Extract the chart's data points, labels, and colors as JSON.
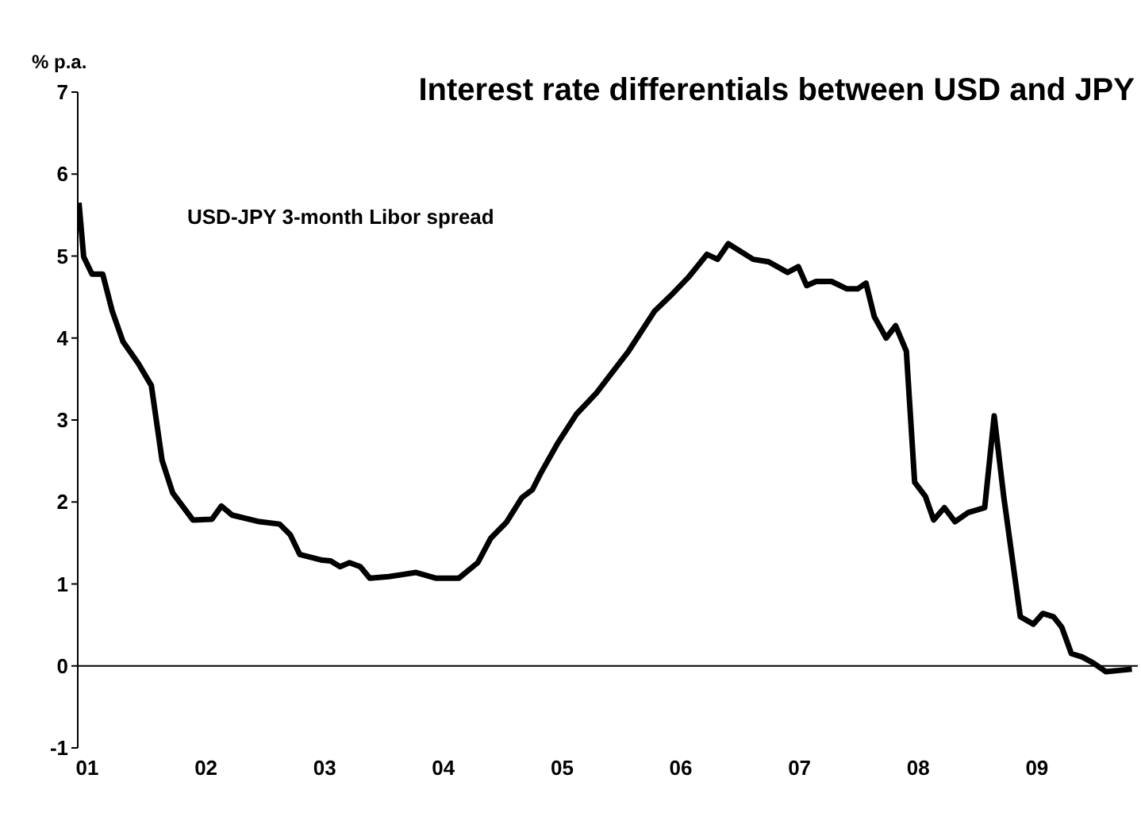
{
  "chart_data": {
    "type": "line",
    "title": "Interest rate differentials between USD and JPY",
    "ylabel": "% p.a.",
    "series": [
      {
        "name": "USD-JPY 3-month Libor spread",
        "color": "#000000",
        "x": [
          2001.01,
          2001.05,
          2001.12,
          2001.21,
          2001.29,
          2001.38,
          2001.51,
          2001.62,
          2001.71,
          2001.8,
          2001.97,
          2002.13,
          2002.21,
          2002.3,
          2002.53,
          2002.7,
          2002.79,
          2002.87,
          2003.06,
          2003.13,
          2003.21,
          2003.29,
          2003.38,
          2003.46,
          2003.62,
          2003.85,
          2004.02,
          2004.21,
          2004.37,
          2004.48,
          2004.61,
          2004.74,
          2004.83,
          2004.9,
          2005.04,
          2005.2,
          2005.37,
          2005.64,
          2005.86,
          2005.99,
          2006.15,
          2006.3,
          2006.39,
          2006.48,
          2006.69,
          2006.82,
          2006.98,
          2007.07,
          2007.14,
          2007.22,
          2007.35,
          2007.48,
          2007.57,
          2007.64,
          2007.71,
          2007.81,
          2007.89,
          2007.98,
          2008.05,
          2008.14,
          2008.21,
          2008.3,
          2008.39,
          2008.5,
          2008.64,
          2008.72,
          2008.8,
          2008.94,
          2009.05,
          2009.13,
          2009.22,
          2009.29,
          2009.37,
          2009.46,
          2009.55,
          2009.66,
          2009.88
        ],
        "values": [
          5.65,
          4.99,
          4.78,
          4.78,
          4.33,
          3.96,
          3.69,
          3.42,
          2.51,
          2.11,
          1.78,
          1.79,
          1.95,
          1.84,
          1.76,
          1.73,
          1.6,
          1.36,
          1.29,
          1.28,
          1.21,
          1.26,
          1.21,
          1.07,
          1.09,
          1.14,
          1.07,
          1.07,
          1.26,
          1.56,
          1.75,
          2.05,
          2.15,
          2.35,
          2.71,
          3.07,
          3.33,
          3.84,
          4.33,
          4.51,
          4.75,
          5.02,
          4.96,
          5.15,
          4.96,
          4.93,
          4.8,
          4.87,
          4.64,
          4.69,
          4.69,
          4.6,
          4.6,
          4.67,
          4.26,
          4.0,
          4.15,
          3.84,
          2.24,
          2.07,
          1.78,
          1.93,
          1.76,
          1.87,
          1.93,
          3.05,
          2.07,
          0.6,
          0.51,
          0.64,
          0.6,
          0.47,
          0.15,
          0.11,
          0.04,
          -0.07,
          -0.04
        ]
      }
    ],
    "xlim": [
      2001,
      2009.93
    ],
    "xticks": [
      {
        "value": 2001,
        "label": "01"
      },
      {
        "value": 2002,
        "label": "02"
      },
      {
        "value": 2003,
        "label": "03"
      },
      {
        "value": 2004,
        "label": "04"
      },
      {
        "value": 2005,
        "label": "05"
      },
      {
        "value": 2006,
        "label": "06"
      },
      {
        "value": 2007,
        "label": "07"
      },
      {
        "value": 2008,
        "label": "08"
      },
      {
        "value": 2009,
        "label": "09"
      }
    ],
    "ylim": [
      -1,
      7
    ],
    "yticks": [
      -1,
      0,
      1,
      2,
      3,
      4,
      5,
      6,
      7
    ],
    "ref_lines": [
      {
        "axis": "y",
        "value": 0,
        "color": "#000000"
      }
    ],
    "grid": false,
    "legend": false,
    "marker": "none",
    "line_style": "solid"
  }
}
